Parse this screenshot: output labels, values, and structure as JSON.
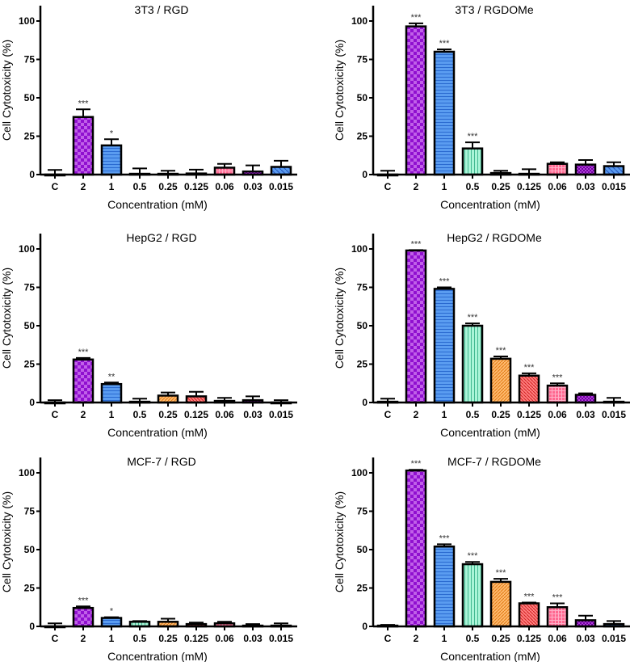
{
  "chart_data": [
    {
      "type": "bar",
      "title": "3T3 / RGD",
      "xlabel": "Concentration (mM)",
      "ylabel": "Cell Cytotoxicity (%)",
      "categories": [
        "C",
        "2",
        "1",
        "0.5",
        "0.25",
        "0.125",
        "0.06",
        "0.03",
        "0.015"
      ],
      "values": [
        0,
        37.5,
        19,
        0.5,
        0.5,
        0.7,
        4.5,
        2,
        5
      ],
      "errors": [
        3,
        5,
        4,
        3.5,
        2,
        2.5,
        2.5,
        4,
        4
      ],
      "significance": [
        "",
        "***",
        "*",
        "",
        "",
        "",
        "",
        "",
        ""
      ],
      "yticks": [
        0,
        25,
        50,
        75,
        100
      ],
      "ylim": [
        0,
        110
      ]
    },
    {
      "type": "bar",
      "title": "3T3 / RGDOMe",
      "xlabel": "Concentration (mM)",
      "ylabel": "Cell Cytotoxicity (%)",
      "categories": [
        "C",
        "2",
        "1",
        "0.5",
        "0.25",
        "0.125",
        "0.06",
        "0.03",
        "0.015"
      ],
      "values": [
        0,
        96.5,
        80,
        17,
        1,
        0.5,
        7,
        6.5,
        5.5
      ],
      "errors": [
        2.5,
        2,
        1.5,
        4,
        1.5,
        3,
        1,
        3,
        2.5
      ],
      "significance": [
        "",
        "***",
        "***",
        "***",
        "",
        "",
        "",
        "",
        ""
      ],
      "yticks": [
        0,
        25,
        50,
        75,
        100
      ],
      "ylim": [
        0,
        110
      ]
    },
    {
      "type": "bar",
      "title": "HepG2 / RGD",
      "xlabel": "Concentration (mM)",
      "ylabel": "Cell Cytotoxicity (%)",
      "categories": [
        "C",
        "2",
        "1",
        "0.5",
        "0.25",
        "0.125",
        "0.06",
        "0.03",
        "0.015"
      ],
      "values": [
        0,
        28,
        12,
        0.5,
        4.5,
        4,
        1,
        1.5,
        0
      ],
      "errors": [
        1.5,
        1,
        1,
        2,
        2,
        3,
        2,
        2.5,
        1.5
      ],
      "significance": [
        "",
        "***",
        "**",
        "",
        "",
        "",
        "",
        "",
        ""
      ],
      "yticks": [
        0,
        25,
        50,
        75,
        100
      ],
      "ylim": [
        0,
        110
      ]
    },
    {
      "type": "bar",
      "title": "HepG2 / RGDOMe",
      "xlabel": "Concentration (mM)",
      "ylabel": "Cell Cytotoxicity (%)",
      "categories": [
        "C",
        "2",
        "1",
        "0.5",
        "0.25",
        "0.125",
        "0.06",
        "0.03",
        "0.015"
      ],
      "values": [
        0.5,
        99,
        74,
        50,
        28.5,
        17.5,
        11,
        5,
        0.5
      ],
      "errors": [
        2,
        0.3,
        1,
        1.5,
        1.5,
        1.5,
        1.5,
        1,
        2.5
      ],
      "significance": [
        "",
        "***",
        "***",
        "***",
        "***",
        "***",
        "***",
        "",
        ""
      ],
      "yticks": [
        0,
        25,
        50,
        75,
        100
      ],
      "ylim": [
        0,
        110
      ]
    },
    {
      "type": "bar",
      "title": "MCF-7 / RGD",
      "xlabel": "Concentration (mM)",
      "ylabel": "Cell Cytotoxicity (%)",
      "categories": [
        "C",
        "2",
        "1",
        "0.5",
        "0.25",
        "0.125",
        "0.06",
        "0.03",
        "0.015"
      ],
      "values": [
        0,
        12,
        5.5,
        3,
        3,
        1.5,
        2,
        0.5,
        0.5
      ],
      "errors": [
        2,
        1,
        0.5,
        0.5,
        2,
        1,
        1,
        1,
        1.5
      ],
      "significance": [
        "",
        "***",
        "*",
        "",
        "",
        "",
        "",
        "",
        ""
      ],
      "yticks": [
        0,
        25,
        50,
        75,
        100
      ],
      "ylim": [
        0,
        110
      ]
    },
    {
      "type": "bar",
      "title": "MCF-7 / RGDOMe",
      "xlabel": "Concentration (mM)",
      "ylabel": "Cell Cytotoxicity (%)",
      "categories": [
        "C",
        "2",
        "1",
        "0.5",
        "0.25",
        "0.125",
        "0.06",
        "0.03",
        "0.015"
      ],
      "values": [
        0.5,
        101.5,
        52,
        40.5,
        29,
        15,
        12.5,
        4,
        1.5
      ],
      "errors": [
        0.5,
        0.5,
        1.5,
        1.5,
        2,
        0.5,
        2.5,
        3,
        2
      ],
      "significance": [
        "",
        "***",
        "***",
        "***",
        "***",
        "***",
        "***",
        "",
        ""
      ],
      "yticks": [
        0,
        25,
        50,
        75,
        100
      ],
      "ylim": [
        0,
        110
      ]
    }
  ],
  "bar_colors": [
    "#ffffff",
    "#b040e0",
    "#4a90e8",
    "#9ff0d0",
    "#ffb060",
    "#ff7070",
    "#ff5c8a",
    "#a020c0",
    "#4a90e8"
  ],
  "grid": false,
  "legend": "none"
}
